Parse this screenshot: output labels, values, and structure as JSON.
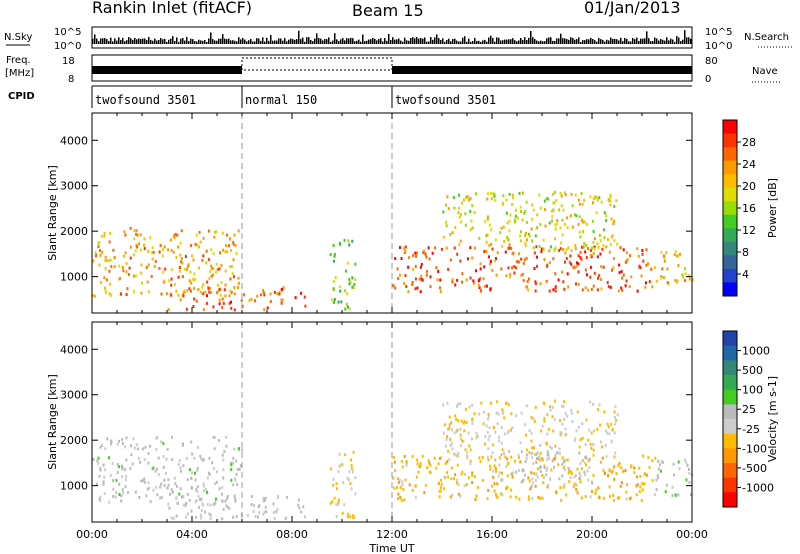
{
  "header": {
    "title": "Rankin Inlet (fitACF)",
    "beam": "Beam 15",
    "date": "01/Jan/2013"
  },
  "top_panels": {
    "nsky_label": "N.Sky",
    "nsearch_label": "N.Search",
    "freq_label_1": "Freq.",
    "freq_label_2": "[MHz]",
    "cpid_label": "CPID",
    "nave_label": "Nave",
    "nsky_ticks": [
      "10^5",
      "10^0"
    ],
    "nsearch_ticks": [
      "10^5",
      "10^0"
    ],
    "freq_ticks": [
      "18",
      "8"
    ],
    "nave_ticks": [
      "80",
      "0"
    ],
    "modes": [
      {
        "label": "twofsound 3501",
        "start_hour": 0,
        "end_hour": 6
      },
      {
        "label": "normal 150",
        "start_hour": 6,
        "end_hour": 12
      },
      {
        "label": "twofsound 3501",
        "start_hour": 12,
        "end_hour": 24
      }
    ]
  },
  "power_colorbar": {
    "label": "Power [dB]",
    "ticks": [
      "28",
      "24",
      "20",
      "16",
      "12",
      "8",
      "4"
    ],
    "colors": [
      "#ff0000",
      "#ff3300",
      "#ff6600",
      "#ff9900",
      "#ffbb00",
      "#dddd00",
      "#99dd00",
      "#44cc22",
      "#33aa55",
      "#338877",
      "#336699",
      "#2244cc",
      "#0000ff"
    ]
  },
  "velocity_colorbar": {
    "label": "Velocity [m s-1]",
    "ticks": [
      "1000",
      "500",
      "100",
      "25",
      "-25",
      "-100",
      "-500",
      "-1000"
    ],
    "colors": [
      "#2244aa",
      "#2266aa",
      "#338877",
      "#33aa55",
      "#44cc22",
      "#bbbbbb",
      "#cccccc",
      "#ffbb00",
      "#ff9900",
      "#ff6600",
      "#ff3300",
      "#ff0000"
    ]
  },
  "chart_data": [
    {
      "type": "heatmap",
      "quantity": "Power",
      "ylabel": "Slant Range [km]",
      "xlabel": "",
      "xlim_hours": [
        0,
        24
      ],
      "ylim_km": [
        200,
        4600
      ],
      "yticks": [
        1000,
        2000,
        3000,
        4000
      ],
      "mode_change_hours": [
        6,
        12
      ],
      "scatter_regions": [
        {
          "t0": 0,
          "t1": 6,
          "r0": 600,
          "r1": 2100,
          "v": 22
        },
        {
          "t0": 3,
          "t1": 8.5,
          "r0": 300,
          "r1": 800,
          "v": 25
        },
        {
          "t0": 9.5,
          "t1": 10.5,
          "r0": 300,
          "r1": 1900,
          "v": 14
        },
        {
          "t0": 12,
          "t1": 22.5,
          "r0": 700,
          "r1": 1700,
          "v": 26
        },
        {
          "t0": 14,
          "t1": 21,
          "r0": 1600,
          "r1": 2900,
          "v": 18
        },
        {
          "t0": 22.5,
          "t1": 24,
          "r0": 800,
          "r1": 1600,
          "v": 20
        }
      ]
    },
    {
      "type": "heatmap",
      "quantity": "Velocity",
      "ylabel": "Slant Range [km]",
      "xlabel": "Time UT",
      "xlim_hours": [
        0,
        24
      ],
      "ylim_km": [
        200,
        4600
      ],
      "yticks": [
        1000,
        2000,
        3000,
        4000
      ],
      "xticks": [
        "00:00",
        "04:00",
        "08:00",
        "12:00",
        "16:00",
        "20:00",
        "00:00"
      ],
      "mode_change_hours": [
        6,
        12
      ],
      "scatter_regions": [
        {
          "t0": 0,
          "t1": 6,
          "r0": 600,
          "r1": 2100,
          "v": 50
        },
        {
          "t0": 3,
          "t1": 8.5,
          "r0": 300,
          "r1": 800,
          "v": 0
        },
        {
          "t0": 9.5,
          "t1": 10.5,
          "r0": 300,
          "r1": 1900,
          "v": -200
        },
        {
          "t0": 12,
          "t1": 22.5,
          "r0": 700,
          "r1": 1700,
          "v": -300
        },
        {
          "t0": 14,
          "t1": 21,
          "r0": 1600,
          "r1": 2900,
          "v": -150
        },
        {
          "t0": 16,
          "t1": 20,
          "r0": 1000,
          "r1": 1800,
          "v": 0
        },
        {
          "t0": 22.5,
          "t1": 24,
          "r0": 800,
          "r1": 1600,
          "v": 100
        }
      ]
    }
  ]
}
